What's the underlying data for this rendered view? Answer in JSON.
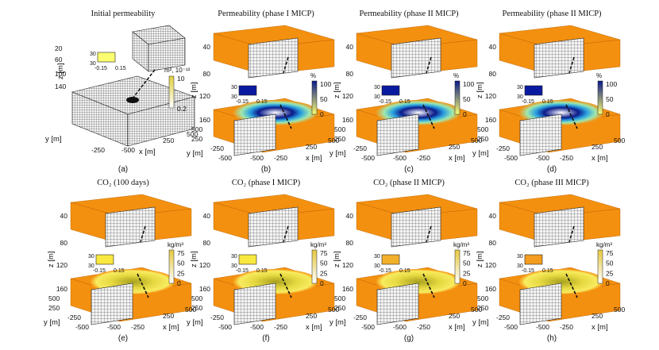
{
  "figure": {
    "panels": [
      {
        "title": "Initial permeability",
        "letter": "(a)",
        "kind": "perm-init",
        "z_label": "z [m]",
        "z_ticks": [
          "20",
          "60",
          "100",
          "140"
        ],
        "x_label": "x [m]",
        "x_ticks": [
          "250",
          "500"
        ],
        "y_label": "y [m]",
        "y_ticks": [
          "-250",
          "-500"
        ],
        "inset_ticks": [
          "30",
          "30",
          "-0.15",
          "0.15"
        ],
        "colorbar": {
          "unit": "m², 10⁻¹³",
          "ticks": [
            "10",
            "0.2"
          ],
          "from": "#ffffff",
          "to": "#e0d040"
        }
      },
      {
        "title": "Permeability (phase I MICP)",
        "letter": "(b)",
        "kind": "perm",
        "z_label": "z [m]",
        "z_ticks": [
          "40",
          "80",
          "120",
          "160"
        ],
        "x_label": "x [m]",
        "x_ticks": [
          "-250",
          "250",
          "500"
        ],
        "y_label": "y [m]",
        "y_ticks": [
          "500",
          "250",
          "-250",
          "-500",
          "-500"
        ],
        "inset_ticks": [
          "30",
          "30",
          "-0.15",
          "0.15"
        ],
        "colorbar": {
          "unit": "%",
          "ticks": [
            "100",
            "50",
            "0"
          ],
          "from": "#fbfd70",
          "to": "#0a1a8a"
        }
      },
      {
        "title": "Permeability (phase II MICP)",
        "letter": "(c)",
        "kind": "perm",
        "z_label": "z [m]",
        "z_ticks": [
          "40",
          "80",
          "120",
          "160"
        ],
        "x_label": "x [m]",
        "x_ticks": [
          "-250",
          "250",
          "500"
        ],
        "y_label": "y [m]",
        "y_ticks": [
          "500",
          "250",
          "-250",
          "-500",
          "-500"
        ],
        "inset_ticks": [
          "30",
          "30",
          "-0.15",
          "0.15"
        ],
        "colorbar": {
          "unit": "%",
          "ticks": [
            "100",
            "50",
            "0"
          ],
          "from": "#fbfd70",
          "to": "#0a1a8a"
        }
      },
      {
        "title": "Permeability (phase II MICP)",
        "letter": "(d)",
        "kind": "perm",
        "z_label": "z [m]",
        "z_ticks": [
          "40",
          "80",
          "120",
          "160"
        ],
        "x_label": "x [m]",
        "x_ticks": [
          "-250",
          "250",
          "500"
        ],
        "y_label": "y [m]",
        "y_ticks": [
          "500",
          "250",
          "-250",
          "-500",
          "-500"
        ],
        "inset_ticks": [
          "30",
          "30",
          "-0.15",
          "0.15"
        ],
        "colorbar": {
          "unit": "%",
          "ticks": [
            "100",
            "50",
            "0"
          ],
          "from": "#fbfd70",
          "to": "#0a1a8a"
        }
      },
      {
        "title": "CO₂ (100 days)",
        "letter": "(e)",
        "kind": "co2",
        "z_label": "z [m]",
        "z_ticks": [
          "40",
          "80",
          "120",
          "160"
        ],
        "x_label": "x [m]",
        "x_ticks": [
          "-250",
          "250",
          "500"
        ],
        "y_label": "y [m]",
        "y_ticks": [
          "500",
          "250",
          "-250",
          "-500",
          "-500"
        ],
        "inset_ticks": [
          "30",
          "30",
          "-0.15",
          "0.15"
        ],
        "colorbar": {
          "unit": "kg/m³",
          "ticks": [
            "75",
            "50",
            "25",
            "0"
          ],
          "from": "#ffffff",
          "to": "#e5c840"
        }
      },
      {
        "title": "CO₂ (phase I MICP)",
        "letter": "(f)",
        "kind": "co2",
        "z_label": "z [m]",
        "z_ticks": [
          "40",
          "80",
          "120",
          "160"
        ],
        "x_label": "x [m]",
        "x_ticks": [
          "-250",
          "250",
          "500"
        ],
        "y_label": "y [m]",
        "y_ticks": [
          "500",
          "250",
          "-250",
          "-500",
          "-500"
        ],
        "inset_ticks": [
          "30",
          "30",
          "-0.15",
          "0.15"
        ],
        "colorbar": {
          "unit": "kg/m³",
          "ticks": [
            "75",
            "50",
            "25",
            "0"
          ],
          "from": "#ffffff",
          "to": "#e5c840"
        }
      },
      {
        "title": "CO₂ (phase II MICP)",
        "letter": "(g)",
        "kind": "co2",
        "z_label": "z [m]",
        "z_ticks": [
          "40",
          "80",
          "120",
          "160"
        ],
        "x_label": "x [m]",
        "x_ticks": [
          "-250",
          "250",
          "500"
        ],
        "y_label": "y [m]",
        "y_ticks": [
          "500",
          "250",
          "-250",
          "-500",
          "-500"
        ],
        "inset_ticks": [
          "30",
          "30",
          "-0.15",
          "0.15"
        ],
        "colorbar": {
          "unit": "kg/m³",
          "ticks": [
            "75",
            "50",
            "25",
            "0"
          ],
          "from": "#ffffff",
          "to": "#e5c840"
        }
      },
      {
        "title": "CO₂ (phase III MICP)",
        "letter": "(h)",
        "kind": "co2",
        "z_label": "z [m]",
        "z_ticks": [
          "40",
          "80",
          "120",
          "160"
        ],
        "x_label": "x [m]",
        "x_ticks": [
          "-250",
          "250",
          "500"
        ],
        "y_label": "y [m]",
        "y_ticks": [
          "500",
          "250",
          "-250",
          "-500",
          "-500"
        ],
        "inset_ticks": [
          "30",
          "30",
          "-0.15",
          "0.15"
        ],
        "colorbar": {
          "unit": "kg/m³",
          "ticks": [
            "75",
            "50",
            "25",
            "0"
          ],
          "from": "#ffffff",
          "to": "#e5c840"
        }
      }
    ]
  }
}
